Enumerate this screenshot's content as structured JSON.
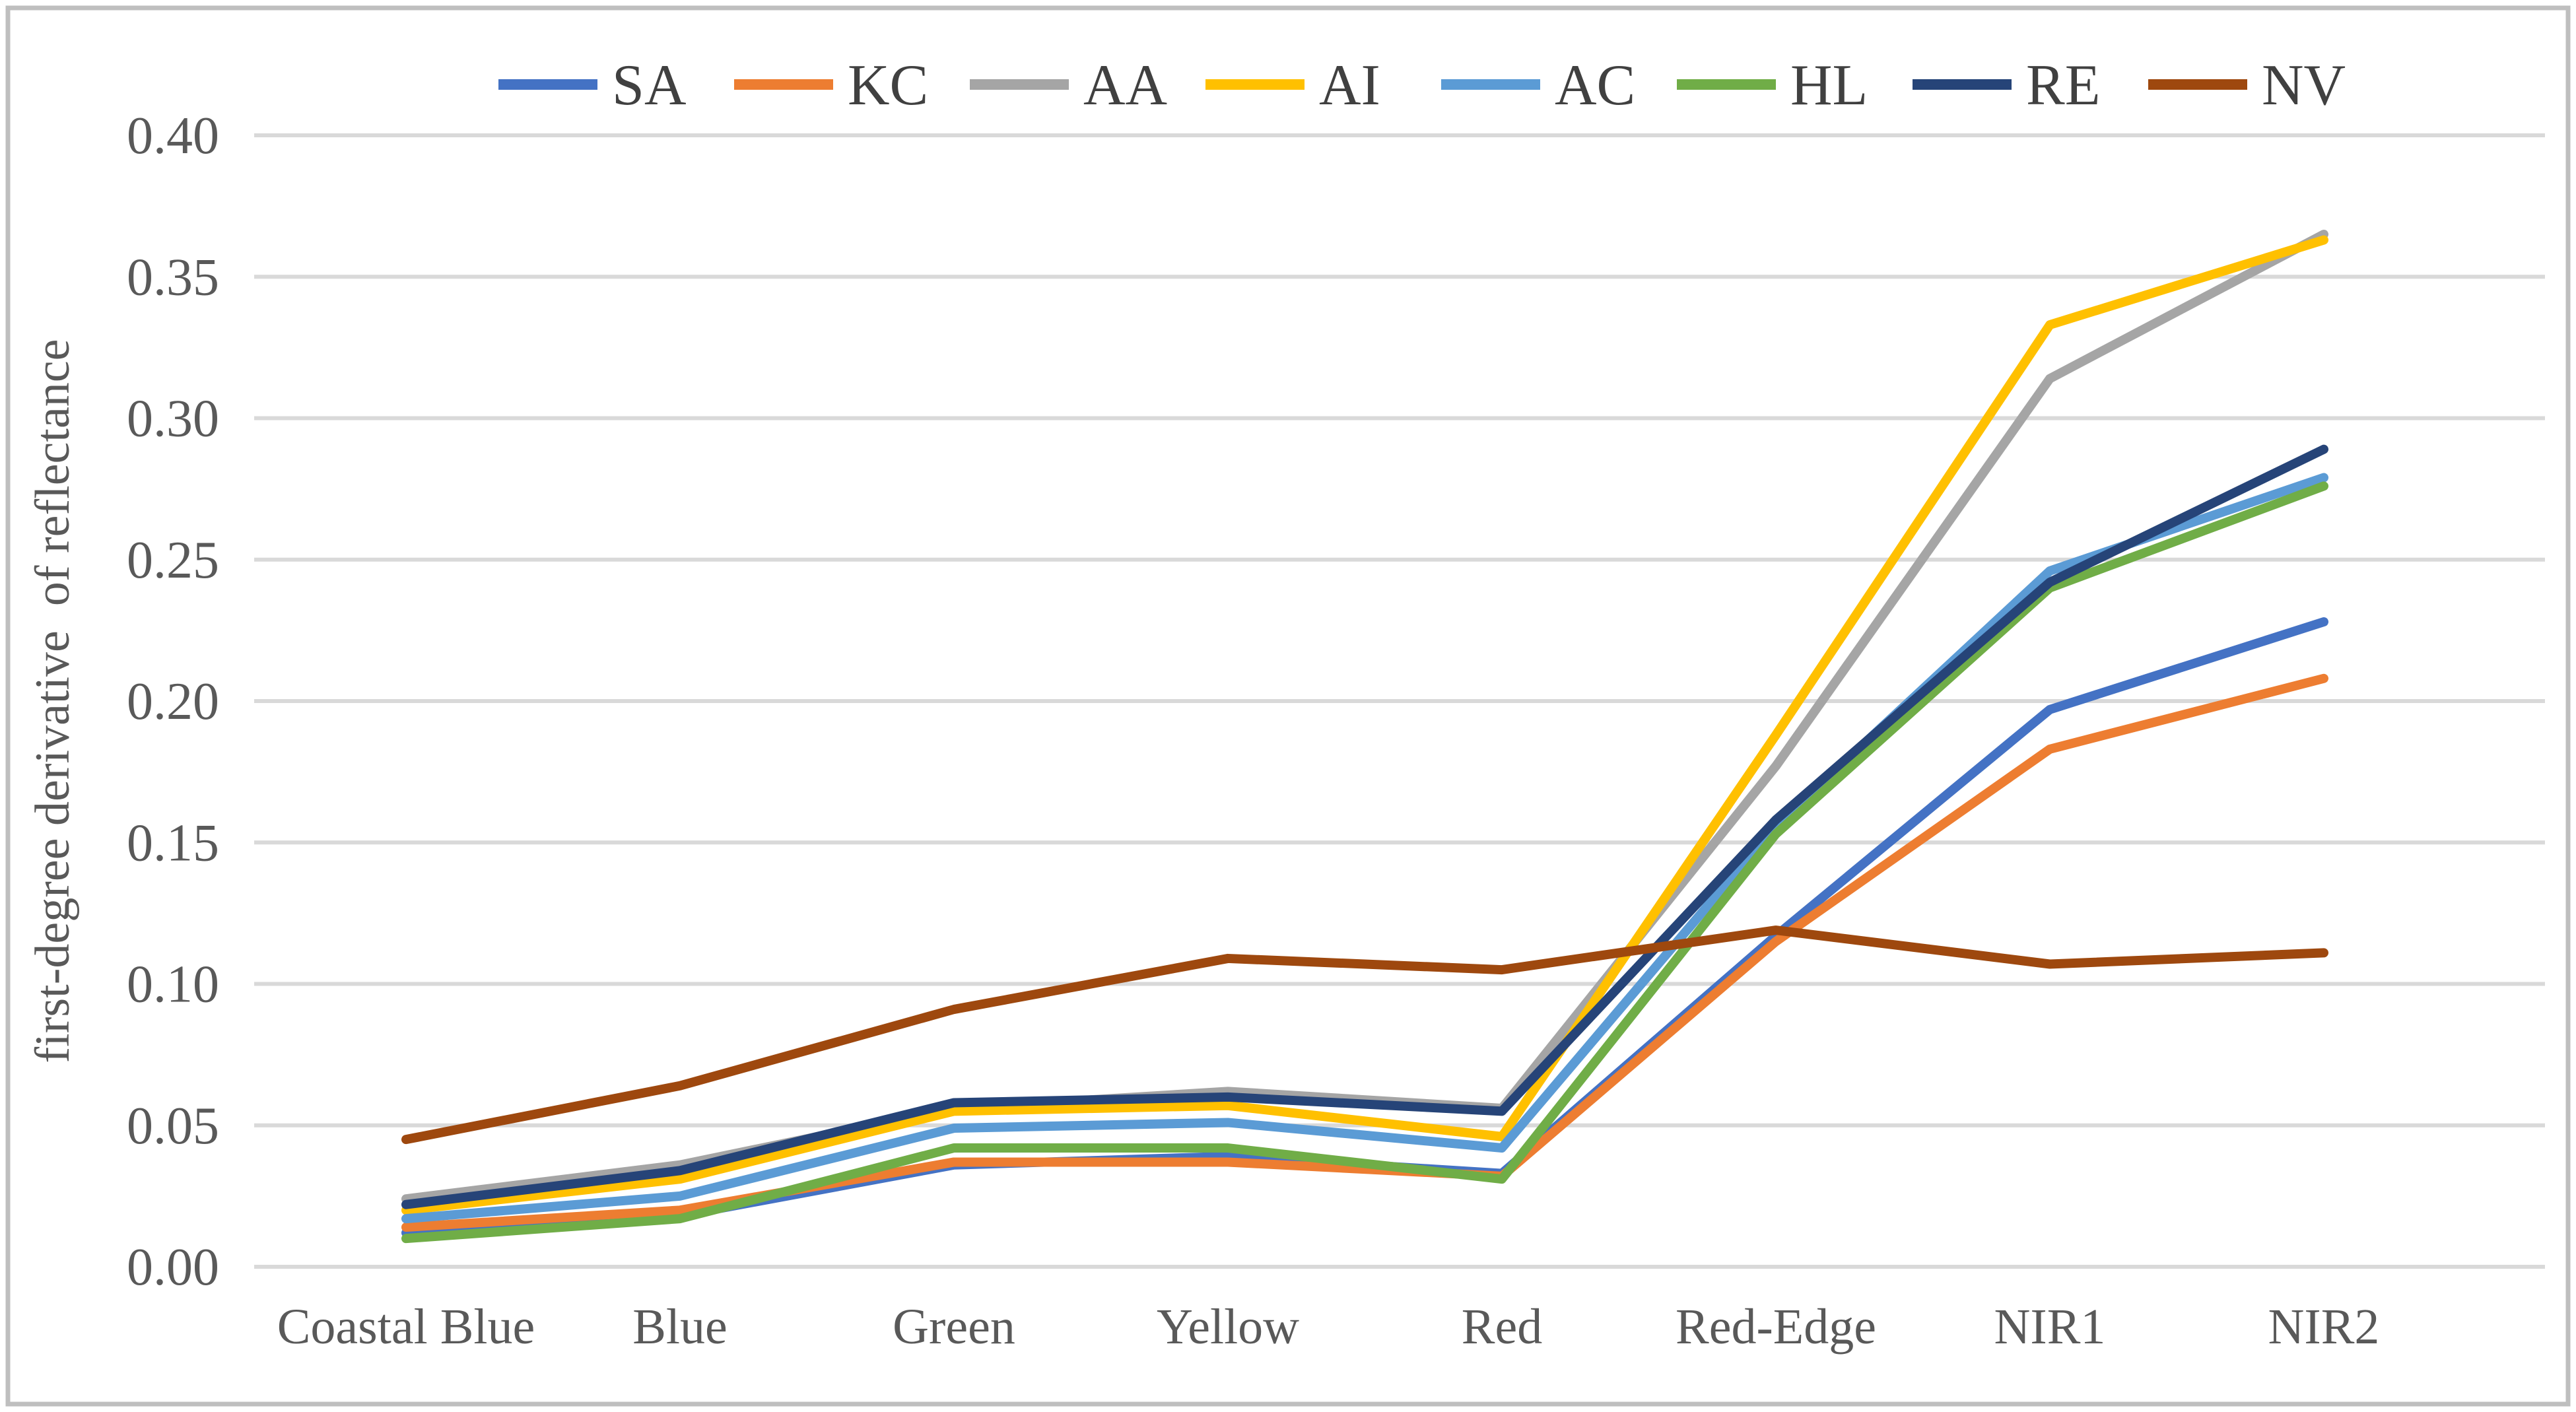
{
  "chart_data": {
    "type": "line",
    "title": "",
    "xlabel": "",
    "ylabel": "first-degree derivative  of reflectance",
    "ylim": [
      0.0,
      0.4
    ],
    "ytick_step": 0.05,
    "ytick_labels": [
      "0.00",
      "0.05",
      "0.10",
      "0.15",
      "0.20",
      "0.25",
      "0.30",
      "0.35",
      "0.40"
    ],
    "grid": "horizontal-only",
    "legend_position": "top-center",
    "categories": [
      "Coastal Blue",
      "Blue",
      "Green",
      "Yellow",
      "Red",
      "Red-Edge",
      "NIR1",
      "NIR2"
    ],
    "series": [
      {
        "name": "SA",
        "color": "#4472C4",
        "values": [
          0.012,
          0.018,
          0.036,
          0.039,
          0.033,
          0.117,
          0.197,
          0.228
        ]
      },
      {
        "name": "KC",
        "color": "#ED7D31",
        "values": [
          0.014,
          0.02,
          0.037,
          0.037,
          0.032,
          0.115,
          0.183,
          0.208
        ]
      },
      {
        "name": "AA",
        "color": "#A5A5A5",
        "values": [
          0.024,
          0.036,
          0.056,
          0.062,
          0.056,
          0.177,
          0.314,
          0.365
        ]
      },
      {
        "name": "AI",
        "color": "#FFC000",
        "values": [
          0.02,
          0.031,
          0.055,
          0.057,
          0.046,
          0.188,
          0.333,
          0.363
        ]
      },
      {
        "name": "AC",
        "color": "#5B9BD5",
        "values": [
          0.017,
          0.025,
          0.049,
          0.051,
          0.042,
          0.156,
          0.246,
          0.279
        ]
      },
      {
        "name": "HL",
        "color": "#70AD47",
        "values": [
          0.01,
          0.017,
          0.042,
          0.042,
          0.031,
          0.153,
          0.24,
          0.276
        ]
      },
      {
        "name": "RE",
        "color": "#264478",
        "values": [
          0.022,
          0.034,
          0.058,
          0.06,
          0.055,
          0.158,
          0.242,
          0.289
        ]
      },
      {
        "name": "NV",
        "color": "#9E480E",
        "values": [
          0.045,
          0.064,
          0.091,
          0.109,
          0.105,
          0.119,
          0.107,
          0.111
        ]
      }
    ],
    "colors": {
      "gridline": "#D9D9D9",
      "axis_text": "#595959",
      "legend_text": "#404040",
      "border": "#BFBFBF",
      "background": "#FFFFFF"
    }
  }
}
